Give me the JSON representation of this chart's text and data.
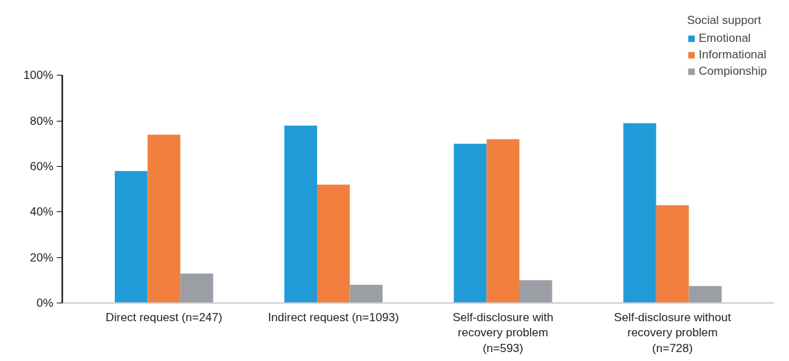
{
  "chart_data": {
    "type": "bar",
    "categories": [
      "Direct request (n=247)",
      "Indirect request (n=1093)",
      "Self-disclosure with\nrecovery problem\n(n=593)",
      "Self-disclosure without\nrecovery problem\n(n=728)"
    ],
    "series": [
      {
        "name": "Emotional",
        "color": "#219bd8",
        "values": [
          58,
          78,
          70,
          79
        ]
      },
      {
        "name": "Informational",
        "color": "#f1803f",
        "values": [
          74,
          52,
          72,
          43
        ]
      },
      {
        "name": "Compionship",
        "color": "#9b9ea5",
        "values": [
          13,
          8,
          10,
          7.5
        ]
      }
    ],
    "legend_title": "Social support",
    "legend": "top right",
    "ylim": [
      0,
      100
    ],
    "yticks": [
      {
        "value": 0,
        "label": "0%"
      },
      {
        "value": 20,
        "label": "20%"
      },
      {
        "value": 40,
        "label": "40%"
      },
      {
        "value": 60,
        "label": "60%"
      },
      {
        "value": 80,
        "label": "80%"
      },
      {
        "value": 100,
        "label": "100%"
      }
    ],
    "grid": false
  }
}
